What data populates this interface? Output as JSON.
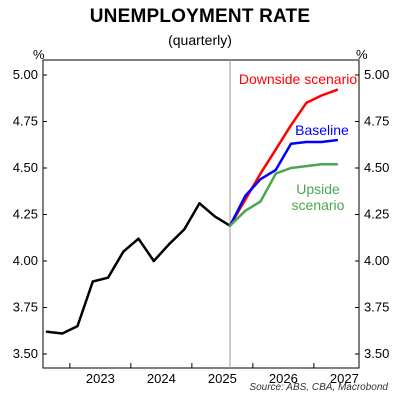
{
  "chart_data": {
    "type": "line",
    "title": "UNEMPLOYMENT RATE",
    "subtitle": "(quarterly)",
    "y_unit_left": "%",
    "y_unit_right": "%",
    "ylim": [
      3.5,
      5.0
    ],
    "y_ticks": [
      "5.00",
      "4.75",
      "4.50",
      "4.25",
      "4.00",
      "3.75",
      "3.50"
    ],
    "x_labels": [
      "2023",
      "2024",
      "2025",
      "2026",
      "2027"
    ],
    "grid": false,
    "source": "Source: ABS, CBA, Macrobond",
    "forecast_divider": "2025-Q3",
    "series": [
      {
        "name": "",
        "color": "#000000",
        "points": [
          [
            "2022-Q3",
            3.62
          ],
          [
            "2022-Q4",
            3.61
          ],
          [
            "2023-Q1",
            3.65
          ],
          [
            "2023-Q2",
            3.89
          ],
          [
            "2023-Q3",
            3.91
          ],
          [
            "2023-Q4",
            4.05
          ],
          [
            "2024-Q1",
            4.12
          ],
          [
            "2024-Q2",
            4.0
          ],
          [
            "2024-Q3",
            4.09
          ],
          [
            "2024-Q4",
            4.17
          ],
          [
            "2025-Q1",
            4.31
          ],
          [
            "2025-Q2",
            4.24
          ],
          [
            "2025-Q3",
            4.19
          ]
        ]
      },
      {
        "name": "Downside scenario",
        "color": "#ff0000",
        "points": [
          [
            "2025-Q3",
            4.19
          ],
          [
            "2025-Q4",
            4.33
          ],
          [
            "2026-Q1",
            4.47
          ],
          [
            "2026-Q2",
            4.6
          ],
          [
            "2026-Q3",
            4.73
          ],
          [
            "2026-Q4",
            4.85
          ],
          [
            "2027-Q1",
            4.89
          ],
          [
            "2027-Q2",
            4.92
          ]
        ]
      },
      {
        "name": "Baseline",
        "color": "#0000ff",
        "points": [
          [
            "2025-Q3",
            4.19
          ],
          [
            "2025-Q4",
            4.35
          ],
          [
            "2026-Q1",
            4.44
          ],
          [
            "2026-Q2",
            4.49
          ],
          [
            "2026-Q3",
            4.63
          ],
          [
            "2026-Q4",
            4.64
          ],
          [
            "2027-Q1",
            4.64
          ],
          [
            "2027-Q2",
            4.65
          ]
        ]
      },
      {
        "name": "Upside scenario",
        "color": "#4ca64c",
        "points": [
          [
            "2025-Q3",
            4.19
          ],
          [
            "2025-Q4",
            4.27
          ],
          [
            "2026-Q1",
            4.32
          ],
          [
            "2026-Q2",
            4.47
          ],
          [
            "2026-Q3",
            4.5
          ],
          [
            "2026-Q4",
            4.51
          ],
          [
            "2027-Q1",
            4.52
          ],
          [
            "2027-Q2",
            4.52
          ]
        ]
      }
    ],
    "annotations": [
      {
        "series": "Downside scenario",
        "lines": [
          "Downside scenario"
        ],
        "color": "#ff0000"
      },
      {
        "series": "Baseline",
        "lines": [
          "Baseline"
        ],
        "color": "#0000ff"
      },
      {
        "series": "Upside scenario",
        "lines": [
          "Upside",
          "scenario"
        ],
        "color": "#4ca64c"
      }
    ]
  }
}
